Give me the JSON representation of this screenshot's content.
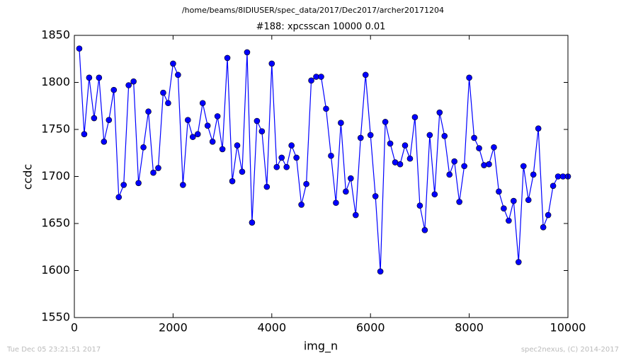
{
  "chart_data": {
    "type": "line",
    "header": "/home/beams/8IDIUSER/spec_data/2017/Dec2017/archer20171204",
    "title": "#188: xpcsscan 10000 0.01",
    "x_label": "img_n",
    "y_label": "ccdc",
    "footer_left": "Tue Dec 05 23:21:51 2017",
    "footer_right": "spec2nexus, (C) 2014-2017",
    "xlim": [
      0,
      10000
    ],
    "xticks": [
      0,
      2000,
      4000,
      6000,
      8000,
      10000
    ],
    "ylim": [
      1550,
      1850
    ],
    "yticks": [
      1550,
      1600,
      1650,
      1700,
      1750,
      1800,
      1850
    ],
    "x": [
      100,
      200,
      300,
      400,
      500,
      600,
      700,
      800,
      900,
      1000,
      1100,
      1200,
      1300,
      1400,
      1500,
      1600,
      1700,
      1800,
      1900,
      2000,
      2100,
      2200,
      2300,
      2400,
      2500,
      2600,
      2700,
      2800,
      2900,
      3000,
      3100,
      3200,
      3300,
      3400,
      3500,
      3600,
      3700,
      3800,
      3900,
      4000,
      4100,
      4200,
      4300,
      4400,
      4500,
      4600,
      4700,
      4800,
      4900,
      5000,
      5100,
      5200,
      5300,
      5400,
      5500,
      5600,
      5700,
      5800,
      5900,
      6000,
      6100,
      6200,
      6300,
      6400,
      6500,
      6600,
      6700,
      6800,
      6900,
      7000,
      7100,
      7200,
      7300,
      7400,
      7500,
      7600,
      7700,
      7800,
      7900,
      8000,
      8100,
      8200,
      8300,
      8400,
      8500,
      8600,
      8700,
      8800,
      8900,
      9000,
      9100,
      9200,
      9300,
      9400,
      9500,
      9600,
      9700,
      9800,
      9900,
      10000
    ],
    "series": [
      {
        "name": "ccdc",
        "color": "#0000ff",
        "values": [
          1836,
          1745,
          1805,
          1762,
          1805,
          1737,
          1760,
          1792,
          1678,
          1691,
          1797,
          1801,
          1693,
          1731,
          1769,
          1704,
          1709,
          1789,
          1778,
          1820,
          1808,
          1691,
          1760,
          1742,
          1745,
          1778,
          1754,
          1737,
          1764,
          1729,
          1826,
          1695,
          1733,
          1705,
          1832,
          1651,
          1759,
          1748,
          1689,
          1820,
          1710,
          1720,
          1710,
          1733,
          1720,
          1670,
          1692,
          1802,
          1806,
          1806,
          1772,
          1722,
          1672,
          1757,
          1684,
          1698,
          1659,
          1741,
          1808,
          1744,
          1679,
          1599,
          1758,
          1735,
          1715,
          1713,
          1733,
          1719,
          1763,
          1669,
          1643,
          1744,
          1681,
          1768,
          1743,
          1702,
          1716,
          1673,
          1711,
          1805,
          1741,
          1730,
          1712,
          1713,
          1731,
          1684,
          1666,
          1653,
          1674,
          1609,
          1711,
          1675,
          1702,
          1751,
          1646,
          1659,
          1690,
          1700,
          1700,
          1700
        ]
      }
    ]
  }
}
